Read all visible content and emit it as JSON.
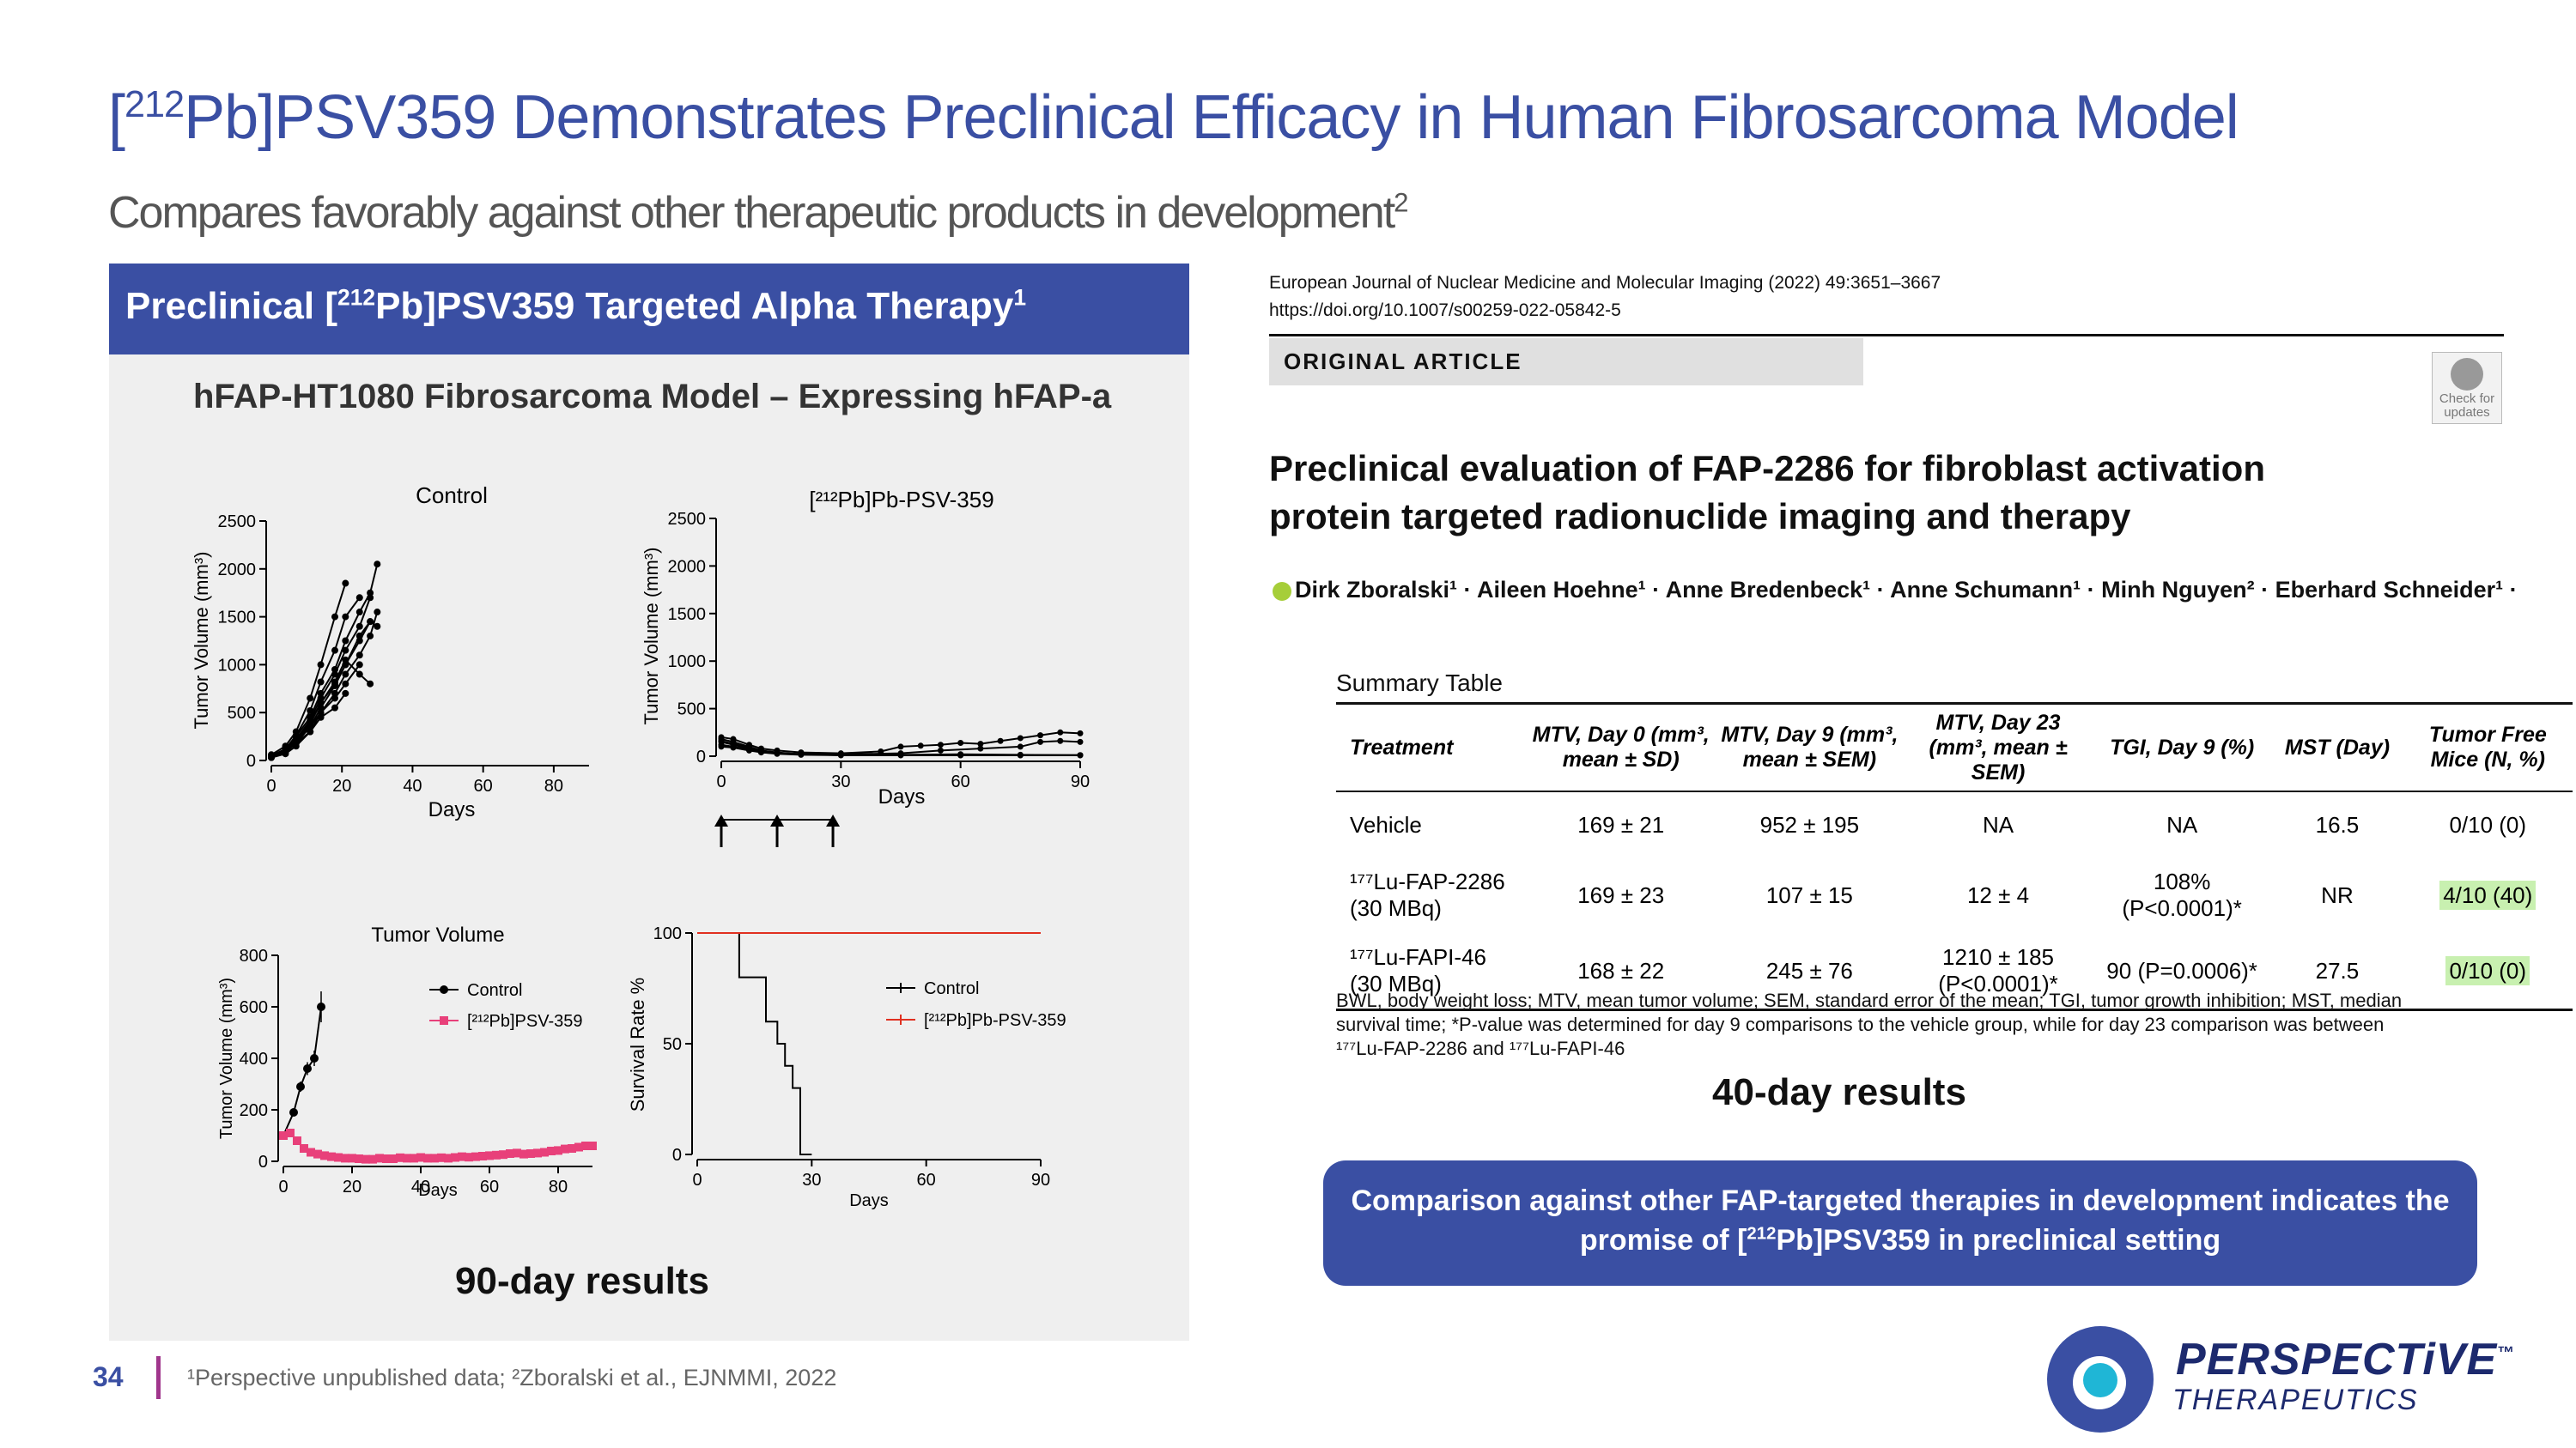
{
  "slide": {
    "title_pre": "[",
    "title_sup": "212",
    "title_post": "Pb]PSV359 Demonstrates Preclinical Efficacy in Human Fibrosarcoma Model",
    "subtitle": "Compares favorably against other therapeutic products in development",
    "subtitle_sup": "2",
    "page_number": "34",
    "footer_ref": "¹Perspective unpublished data; ²Zboralski et al., EJNMMI, 2022"
  },
  "left_panel": {
    "header_pre": "Preclinical [",
    "header_sup": "212",
    "header_post": "Pb]PSV359 Targeted Alpha Therapy",
    "header_sup2": "1",
    "model_title": "hFAP-HT1080 Fibrosarcoma Model – Expressing hFAP-a",
    "results_label": "90-day results"
  },
  "paper": {
    "journal_line1": "European Journal of Nuclear Medicine and Molecular Imaging (2022) 49:3651–3667",
    "journal_line2": "https://doi.org/10.1007/s00259-022-05842-5",
    "article_type": "ORIGINAL ARTICLE",
    "check_updates": "Check for updates",
    "title": "Preclinical evaluation of FAP-2286 for fibroblast activation protein targeted radionuclide imaging and therapy",
    "authors": "Dirk Zboralski¹ · Aileen Hoehne¹ · Anne Bredenbeck¹ · Anne Schumann¹ · Minh Nguyen² · Eberhard Schneider¹ ·",
    "summary_title": "Summary Table",
    "table_headers": [
      "Treatment",
      "MTV, Day 0 (mm³, mean ± SD)",
      "MTV, Day 9 (mm³, mean ± SEM)",
      "MTV, Day 23 (mm³, mean ± SEM)",
      "TGI, Day 9 (%)",
      "MST (Day)",
      "Tumor Free Mice (N, %)"
    ],
    "table_rows": [
      [
        "Vehicle",
        "169 ± 21",
        "952 ± 195",
        "NA",
        "NA",
        "16.5",
        "0/10 (0)"
      ],
      [
        "¹⁷⁷Lu-FAP-2286 (30 MBq)",
        "169 ± 23",
        "107 ± 15",
        "12 ± 4",
        "108% (P<0.0001)*",
        "NR",
        "4/10 (40)"
      ],
      [
        "¹⁷⁷Lu-FAPI-46 (30 MBq)",
        "168 ± 22",
        "245 ± 76",
        "1210 ± 185 (P<0.0001)*",
        "90 (P=0.0006)*",
        "27.5",
        "0/10 (0)"
      ]
    ],
    "footnote": "BWL, body weight loss; MTV, mean tumor volume; SEM, standard error of the mean; TGI, tumor growth inhibition; MST, median survival time; *P-value was determined for day 9 comparisons to the vehicle group, while for day 23 comparison was between ¹⁷⁷Lu-FAP-2286 and ¹⁷⁷Lu-FAPI-46",
    "results_label": "40-day results"
  },
  "callout": {
    "line1": "Comparison against other FAP-targeted therapies in development indicates the",
    "line2_pre": "promise of [",
    "line2_sup": "212",
    "line2_post": "Pb]PSV359 in preclinical setting"
  },
  "logo": {
    "name": "PERSPECTiVE",
    "tm": "™",
    "sub": "THERAPEUTICS"
  },
  "colors": {
    "brand_blue": "#3a4fa3",
    "accent_magenta": "#a0368c",
    "logo_cyan": "#1fb6d6",
    "psv_pink": "#e8407a",
    "psv_red": "#e03020",
    "highlight_green": "#c8f0b0"
  },
  "chart_data": [
    {
      "type": "line",
      "title": "Control",
      "ylabel": "Tumor Volume (mm³)",
      "xlabel": "Days",
      "xlim": [
        0,
        90
      ],
      "ylim": [
        0,
        2500
      ],
      "xticks": [
        0,
        20,
        40,
        60,
        80
      ],
      "yticks": [
        0,
        500,
        1000,
        1500,
        2000,
        2500
      ],
      "series": [
        {
          "x": [
            0,
            4,
            7,
            11,
            14,
            18,
            21
          ],
          "y": [
            60,
            150,
            300,
            650,
            1000,
            1500,
            1850
          ]
        },
        {
          "x": [
            0,
            4,
            7,
            11,
            14,
            18,
            21,
            25
          ],
          "y": [
            40,
            120,
            260,
            520,
            820,
            1150,
            1500,
            1700
          ]
        },
        {
          "x": [
            0,
            4,
            7,
            11,
            14,
            18,
            21,
            25,
            28
          ],
          "y": [
            50,
            100,
            220,
            420,
            650,
            900,
            1150,
            1400,
            1700
          ]
        },
        {
          "x": [
            0,
            4,
            7,
            11,
            14,
            18,
            21,
            25,
            28
          ],
          "y": [
            30,
            80,
            180,
            350,
            550,
            780,
            1000,
            1250,
            1450
          ]
        },
        {
          "x": [
            0,
            4,
            7,
            11,
            14,
            18,
            21,
            25,
            28,
            30
          ],
          "y": [
            50,
            120,
            250,
            450,
            700,
            950,
            1250,
            1550,
            1750,
            2050
          ]
        },
        {
          "x": [
            0,
            4,
            7,
            11,
            14,
            18,
            21,
            25,
            28
          ],
          "y": [
            40,
            90,
            200,
            380,
            600,
            820,
            1050,
            900,
            800
          ]
        },
        {
          "x": [
            0,
            4,
            7,
            11,
            14,
            18,
            21,
            25,
            28,
            30
          ],
          "y": [
            30,
            70,
            150,
            300,
            500,
            700,
            900,
            1100,
            1300,
            1550
          ]
        },
        {
          "x": [
            0,
            4,
            7,
            11,
            14,
            18,
            21,
            25
          ],
          "y": [
            50,
            100,
            200,
            350,
            500,
            650,
            800,
            1000
          ]
        },
        {
          "x": [
            0,
            4,
            7,
            11,
            14,
            18,
            21
          ],
          "y": [
            40,
            90,
            180,
            300,
            450,
            550,
            700
          ]
        },
        {
          "x": [
            0,
            4,
            7,
            11,
            14,
            18,
            21,
            25,
            28,
            30
          ],
          "y": [
            40,
            110,
            220,
            400,
            600,
            800,
            1000,
            1300,
            1450,
            1400
          ]
        }
      ]
    },
    {
      "type": "line",
      "title": "[²¹²Pb]Pb-PSV-359",
      "ylabel": "Tumor Volume (mm³)",
      "xlabel": "Days",
      "xlim": [
        0,
        90
      ],
      "ylim": [
        0,
        2500
      ],
      "xticks": [
        0,
        30,
        60,
        90
      ],
      "yticks": [
        0,
        500,
        1000,
        1500,
        2000,
        2500
      ],
      "dosing_days": [
        0,
        14,
        28
      ],
      "series": [
        {
          "x": [
            0,
            3,
            7,
            10,
            14,
            20,
            30,
            45,
            60,
            75,
            90
          ],
          "y": [
            150,
            120,
            80,
            50,
            30,
            20,
            10,
            10,
            10,
            10,
            10
          ]
        },
        {
          "x": [
            0,
            3,
            7,
            10,
            14,
            20,
            30,
            40,
            45,
            50,
            55,
            60,
            65,
            70,
            75,
            80,
            85,
            90
          ],
          "y": [
            200,
            180,
            120,
            80,
            60,
            40,
            30,
            50,
            100,
            110,
            120,
            140,
            130,
            160,
            190,
            220,
            250,
            240
          ]
        },
        {
          "x": [
            0,
            3,
            7,
            10,
            14,
            20,
            30,
            45,
            55,
            65,
            75,
            80,
            85,
            90
          ],
          "y": [
            120,
            100,
            70,
            40,
            30,
            25,
            20,
            30,
            60,
            80,
            100,
            150,
            160,
            150
          ]
        },
        {
          "x": [
            0,
            3,
            7,
            10,
            14,
            20,
            30,
            45,
            60,
            75,
            90
          ],
          "y": [
            180,
            150,
            100,
            60,
            40,
            20,
            15,
            12,
            10,
            10,
            10
          ]
        },
        {
          "x": [
            0,
            3,
            7,
            10,
            14,
            20,
            30,
            45,
            60,
            75,
            90
          ],
          "y": [
            100,
            90,
            60,
            40,
            25,
            15,
            10,
            10,
            10,
            10,
            10
          ]
        },
        {
          "x": [
            0,
            3,
            7,
            10,
            14,
            20,
            30,
            45,
            60,
            75,
            90
          ],
          "y": [
            160,
            130,
            90,
            50,
            30,
            20,
            15,
            15,
            20,
            15,
            10
          ]
        }
      ]
    },
    {
      "type": "line",
      "title": "Tumor  Volume",
      "ylabel": "Tumor Volume (mm³)",
      "xlabel": "Days",
      "xlim": [
        0,
        90
      ],
      "ylim": [
        0,
        800
      ],
      "xticks": [
        0,
        20,
        40,
        60,
        80
      ],
      "yticks": [
        0,
        200,
        400,
        600,
        800
      ],
      "legend_position": "top-right",
      "series": [
        {
          "name": "Control",
          "x": [
            0,
            3,
            5,
            7,
            9,
            11
          ],
          "y": [
            100,
            190,
            290,
            360,
            400,
            600
          ],
          "err": [
            10,
            15,
            20,
            25,
            30,
            60
          ]
        },
        {
          "name": "[²¹²Pb]PSV-359",
          "x": [
            0,
            2,
            4,
            6,
            8,
            10,
            12,
            14,
            16,
            18,
            20,
            22,
            24,
            26,
            28,
            30,
            32,
            34,
            36,
            38,
            40,
            42,
            44,
            46,
            48,
            50,
            52,
            54,
            56,
            58,
            60,
            62,
            64,
            66,
            68,
            70,
            72,
            74,
            76,
            78,
            80,
            82,
            84,
            86,
            88,
            90
          ],
          "y": [
            100,
            110,
            80,
            50,
            35,
            28,
            22,
            18,
            15,
            12,
            12,
            10,
            8,
            8,
            12,
            10,
            10,
            14,
            12,
            12,
            15,
            12,
            12,
            14,
            12,
            15,
            18,
            16,
            18,
            20,
            22,
            24,
            26,
            30,
            32,
            28,
            30,
            32,
            35,
            40,
            42,
            48,
            50,
            55,
            60,
            60
          ],
          "err": [
            10,
            10,
            8,
            6,
            5,
            5,
            4,
            4,
            4,
            3,
            3,
            3,
            3,
            3,
            3,
            3,
            3,
            4,
            4,
            4,
            4,
            4,
            4,
            4,
            4,
            5,
            5,
            5,
            5,
            6,
            6,
            6,
            7,
            7,
            8,
            8,
            8,
            9,
            9,
            10,
            12,
            12,
            14,
            15,
            16,
            16
          ]
        }
      ]
    },
    {
      "type": "line",
      "title": "",
      "ylabel": "Survival Rate %",
      "xlabel": "Days",
      "xlim": [
        0,
        90
      ],
      "ylim": [
        0,
        100
      ],
      "xticks": [
        0,
        30,
        60,
        90
      ],
      "yticks": [
        0,
        50,
        100
      ],
      "legend_position": "top-right",
      "series": [
        {
          "name": "Control",
          "x": [
            0,
            11,
            11,
            18,
            18,
            21,
            21,
            23,
            23,
            25,
            25,
            27,
            27,
            30
          ],
          "y": [
            100,
            100,
            80,
            80,
            60,
            60,
            50,
            50,
            40,
            40,
            30,
            30,
            0,
            0
          ]
        },
        {
          "name": "[²¹²Pb]Pb-PSV-359",
          "x": [
            0,
            90
          ],
          "y": [
            100,
            100
          ]
        }
      ]
    }
  ]
}
